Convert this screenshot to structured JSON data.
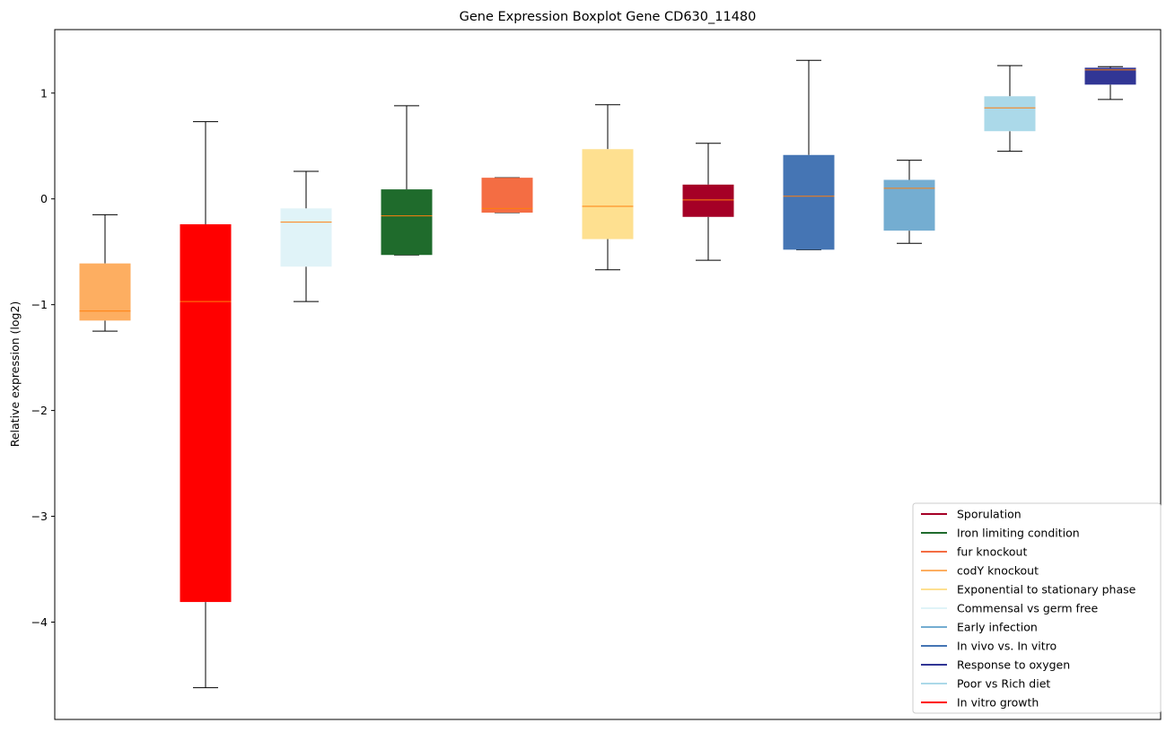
{
  "chart_data": {
    "type": "boxplot",
    "title": "Gene Expression Boxplot Gene CD630_11480",
    "xlabel": "",
    "ylabel": "Relative expression (log2)",
    "ylim": [
      -4.92,
      1.6
    ],
    "yticks": [
      -4,
      -3,
      -2,
      -1,
      0,
      1
    ],
    "ytick_labels": [
      "−4",
      "−3",
      "−2",
      "−1",
      "0",
      "1"
    ],
    "grid": false,
    "legend_position": "lower-right",
    "median_color": "#ff7f0e",
    "boxes": [
      {
        "label": "codY knockout",
        "color": "#fdae61",
        "whisker_low": -1.25,
        "q1": -1.15,
        "median": -1.06,
        "q3": -0.61,
        "whisker_high": -0.15
      },
      {
        "label": "In vitro growth",
        "color": "#ff0000",
        "whisker_low": -4.62,
        "q1": -3.81,
        "median": -0.97,
        "q3": -0.24,
        "whisker_high": 0.73
      },
      {
        "label": "Commensal vs germ free",
        "color": "#e0f3f8",
        "whisker_low": -0.97,
        "q1": -0.64,
        "median": -0.22,
        "q3": -0.09,
        "whisker_high": 0.26
      },
      {
        "label": "Iron limiting condition",
        "color": "#1f6b2c",
        "whisker_low": -0.53,
        "q1": -0.53,
        "median": -0.16,
        "q3": 0.09,
        "whisker_high": 0.88
      },
      {
        "label": "fur knockout",
        "color": "#f46d43",
        "whisker_low": -0.13,
        "q1": -0.13,
        "median": -0.09,
        "q3": 0.2,
        "whisker_high": 0.2
      },
      {
        "label": "Exponential to stationary phase",
        "color": "#fee090",
        "whisker_low": -0.67,
        "q1": -0.38,
        "median": -0.07,
        "q3": 0.47,
        "whisker_high": 0.89
      },
      {
        "label": "Sporulation",
        "color": "#a50026",
        "whisker_low": -0.58,
        "q1": -0.17,
        "median": -0.01,
        "q3": 0.135,
        "whisker_high": 0.525
      },
      {
        "label": "In vivo vs. In vitro",
        "color": "#4575b4",
        "whisker_low": -0.48,
        "q1": -0.48,
        "median": 0.025,
        "q3": 0.415,
        "whisker_high": 1.31
      },
      {
        "label": "Early infection",
        "color": "#74add1",
        "whisker_low": -0.42,
        "q1": -0.3,
        "median": 0.1,
        "q3": 0.18,
        "whisker_high": 0.365
      },
      {
        "label": "Poor vs Rich diet",
        "color": "#abd9e9",
        "whisker_low": 0.45,
        "q1": 0.64,
        "median": 0.86,
        "q3": 0.97,
        "whisker_high": 1.26
      },
      {
        "label": "Response to oxygen",
        "color": "#313695",
        "whisker_low": 0.94,
        "q1": 1.08,
        "median": 1.22,
        "q3": 1.24,
        "whisker_high": 1.25
      }
    ],
    "legend": [
      {
        "label": "Sporulation",
        "color": "#a50026"
      },
      {
        "label": "Iron limiting condition",
        "color": "#1f6b2c"
      },
      {
        "label": "fur knockout",
        "color": "#f46d43"
      },
      {
        "label": "codY knockout",
        "color": "#fdae61"
      },
      {
        "label": "Exponential to stationary phase",
        "color": "#fee090"
      },
      {
        "label": "Commensal vs germ free",
        "color": "#e0f3f8"
      },
      {
        "label": "Early infection",
        "color": "#74add1"
      },
      {
        "label": "In vivo vs. In vitro",
        "color": "#4575b4"
      },
      {
        "label": "Response to oxygen",
        "color": "#313695"
      },
      {
        "label": "Poor vs Rich diet",
        "color": "#abd9e9"
      },
      {
        "label": "In vitro growth",
        "color": "#ff0000"
      }
    ]
  }
}
